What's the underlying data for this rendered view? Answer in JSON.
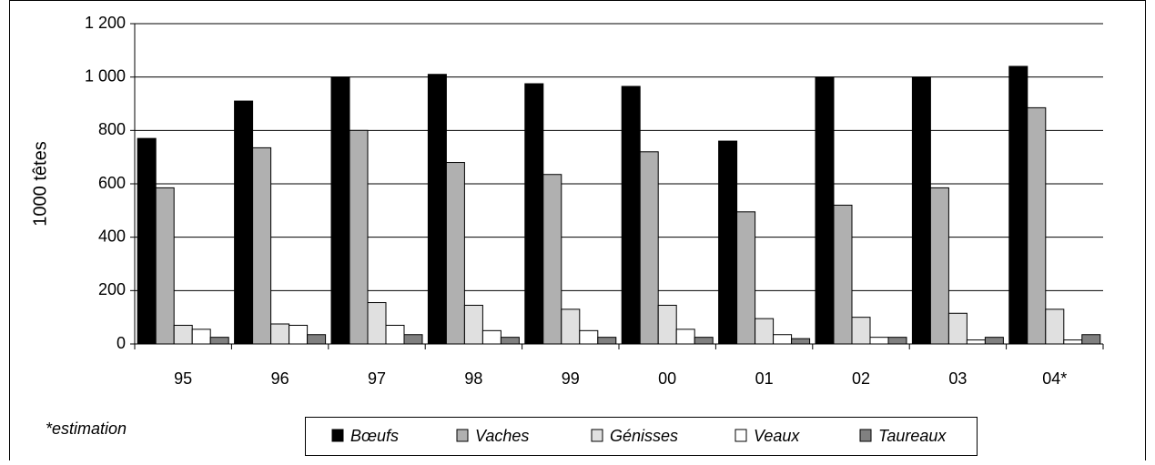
{
  "chart_data": {
    "type": "bar",
    "y_label": "1000 têtes",
    "note": "*estimation",
    "categories": [
      "95",
      "96",
      "97",
      "98",
      "99",
      "00",
      "01",
      "02",
      "03",
      "04*"
    ],
    "series": [
      {
        "name": "Bœufs",
        "color": "#000000",
        "values": [
          770,
          910,
          1000,
          1010,
          975,
          965,
          760,
          1000,
          1000,
          1040
        ]
      },
      {
        "name": "Vaches",
        "color": "#b0b0b0",
        "values": [
          585,
          735,
          800,
          680,
          635,
          720,
          495,
          520,
          585,
          885
        ]
      },
      {
        "name": "Génisses",
        "color": "#e0e0e0",
        "values": [
          70,
          75,
          155,
          145,
          130,
          145,
          95,
          100,
          115,
          130
        ]
      },
      {
        "name": "Veaux",
        "color": "#ffffff",
        "values": [
          55,
          70,
          70,
          50,
          50,
          55,
          35,
          25,
          15,
          15
        ]
      },
      {
        "name": "Taureaux",
        "color": "#808080",
        "values": [
          25,
          35,
          35,
          25,
          25,
          25,
          20,
          25,
          25,
          35
        ]
      }
    ],
    "ylim": [
      0,
      1200
    ],
    "yticks": [
      0,
      200,
      400,
      600,
      800,
      {
        "value": 1000,
        "label": "1 000"
      },
      {
        "value": 1200,
        "label": "1 200"
      }
    ],
    "grid": true
  }
}
